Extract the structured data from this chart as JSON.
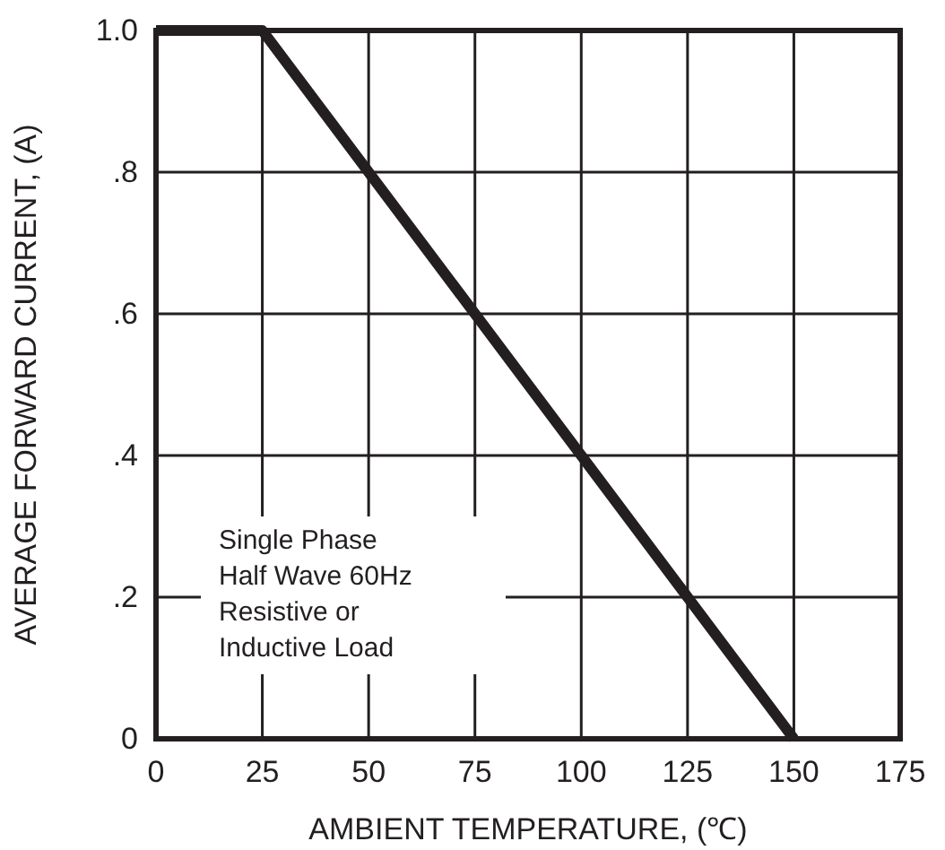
{
  "chart_data": {
    "type": "line",
    "xlabel": "AMBIENT TEMPERATURE, (℃)",
    "ylabel": "AVERAGE FORWARD CURRENT, (A)",
    "x": [
      0,
      25,
      150
    ],
    "series": [
      {
        "color": "#231f20",
        "values": [
          1.0,
          1.0,
          0
        ]
      }
    ],
    "xlim": [
      0,
      175
    ],
    "xticks": [
      0,
      25,
      50,
      75,
      100,
      125,
      150,
      175
    ],
    "ylim": [
      0,
      1.0
    ],
    "yticks": [
      0,
      {
        "value": 0.2,
        "label": ".2"
      },
      {
        "value": 0.4,
        "label": ".4"
      },
      {
        "value": 0.6,
        "label": ".6"
      },
      {
        "value": 0.8,
        "label": ".8"
      },
      {
        "value": 1.0,
        "label": "1.0"
      }
    ],
    "grid": true,
    "marker": "none",
    "line_style": "solid",
    "annotations": [
      "Single Phase\nHalf Wave 60Hz\nResistive or\nInductive Load"
    ]
  }
}
